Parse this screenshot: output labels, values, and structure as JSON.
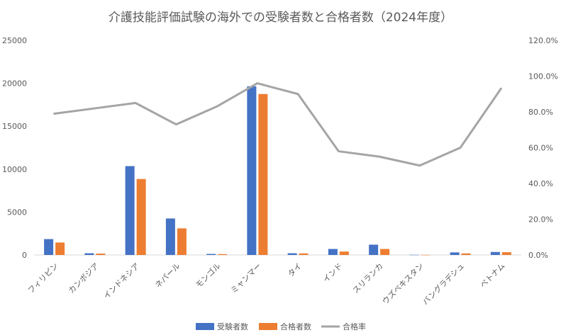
{
  "chart_data": {
    "type": "bar",
    "title": "介護技能評価試験の海外での受験者数と合格者数（2024年度）",
    "categories": [
      "フィリピン",
      "カンボジア",
      "インドネシア",
      "ネパール",
      "モンゴル",
      "ミャンマー",
      "タイ",
      "インド",
      "スリランカ",
      "ウズベキスタン",
      "バングラデシュ",
      "ベトナム"
    ],
    "series": [
      {
        "name": "受験者数",
        "kind": "bar",
        "axis": "left",
        "color": "#4472C4",
        "values": [
          1850,
          200,
          10350,
          4250,
          120,
          19650,
          200,
          700,
          1200,
          20,
          300,
          350
        ]
      },
      {
        "name": "合格者数",
        "kind": "bar",
        "axis": "left",
        "color": "#ED7D31",
        "values": [
          1450,
          160,
          8850,
          3100,
          100,
          18750,
          180,
          400,
          700,
          10,
          180,
          320
        ]
      },
      {
        "name": "合格率",
        "kind": "line",
        "axis": "right",
        "color": "#A5A5A5",
        "values": [
          79,
          82,
          85,
          73,
          83,
          96,
          90,
          58,
          55,
          50,
          60,
          93
        ]
      }
    ],
    "yleft": {
      "min": 0,
      "max": 25000,
      "ticks": [
        "0",
        "5000",
        "10000",
        "15000",
        "20000",
        "25000"
      ]
    },
    "yright": {
      "min": 0,
      "max": 120,
      "ticks": [
        "0.0%",
        "20.0%",
        "40.0%",
        "60.0%",
        "80.0%",
        "100.0%",
        "120.0%"
      ]
    },
    "grid": false,
    "legend_position": "bottom"
  }
}
